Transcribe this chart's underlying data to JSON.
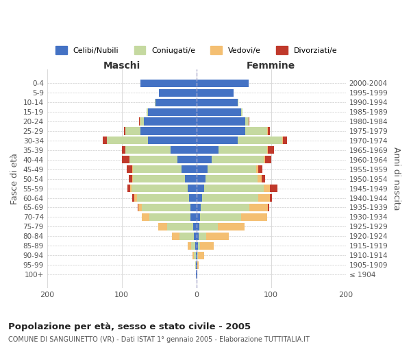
{
  "age_groups": [
    "100+",
    "95-99",
    "90-94",
    "85-89",
    "80-84",
    "75-79",
    "70-74",
    "65-69",
    "60-64",
    "55-59",
    "50-54",
    "45-49",
    "40-44",
    "35-39",
    "30-34",
    "25-29",
    "20-24",
    "15-19",
    "10-14",
    "5-9",
    "0-4"
  ],
  "birth_years": [
    "≤ 1904",
    "1905-1909",
    "1910-1914",
    "1915-1919",
    "1920-1924",
    "1925-1929",
    "1930-1934",
    "1935-1939",
    "1940-1944",
    "1945-1949",
    "1950-1954",
    "1955-1959",
    "1960-1964",
    "1965-1969",
    "1970-1974",
    "1975-1979",
    "1980-1984",
    "1985-1989",
    "1990-1994",
    "1995-1999",
    "2000-2004"
  ],
  "male_celibi": [
    1,
    1,
    1,
    2,
    3,
    4,
    8,
    8,
    10,
    12,
    15,
    20,
    25,
    35,
    65,
    75,
    70,
    65,
    55,
    50,
    75
  ],
  "male_coniugati": [
    0,
    1,
    2,
    5,
    20,
    35,
    55,
    65,
    70,
    75,
    70,
    65,
    65,
    60,
    55,
    20,
    5,
    2,
    1,
    0,
    0
  ],
  "male_vedovi": [
    0,
    0,
    2,
    5,
    10,
    12,
    10,
    5,
    3,
    2,
    1,
    1,
    0,
    0,
    0,
    0,
    1,
    0,
    0,
    0,
    0
  ],
  "male_divorziati": [
    0,
    0,
    0,
    0,
    0,
    0,
    0,
    1,
    3,
    3,
    5,
    7,
    10,
    5,
    5,
    2,
    1,
    0,
    0,
    0,
    0
  ],
  "female_celibi": [
    1,
    1,
    1,
    2,
    3,
    4,
    5,
    6,
    8,
    10,
    12,
    15,
    20,
    30,
    55,
    65,
    65,
    60,
    55,
    50,
    70
  ],
  "female_coniugati": [
    0,
    0,
    1,
    3,
    10,
    25,
    55,
    65,
    75,
    80,
    70,
    65,
    70,
    65,
    60,
    30,
    5,
    2,
    1,
    0,
    0
  ],
  "female_vedovi": [
    0,
    2,
    8,
    18,
    30,
    35,
    35,
    25,
    15,
    8,
    5,
    3,
    2,
    1,
    1,
    1,
    0,
    0,
    0,
    0,
    0
  ],
  "female_divorziati": [
    0,
    0,
    0,
    0,
    0,
    0,
    0,
    1,
    3,
    10,
    5,
    5,
    8,
    8,
    5,
    2,
    1,
    0,
    0,
    0,
    0
  ],
  "colors": {
    "celibi": "#4472c4",
    "coniugati": "#c5d9a0",
    "vedovi": "#f4bf72",
    "divorziati": "#c0392b"
  },
  "title": "Popolazione per età, sesso e stato civile - 2005",
  "subtitle": "COMUNE DI SANGUINETTO (VR) - Dati ISTAT 1° gennaio 2005 - Elaborazione TUTTITALIA.IT",
  "ylabel_left": "Fasce di età",
  "ylabel_right": "Anni di nascita",
  "xlabel_left": "Maschi",
  "xlabel_right": "Femmine",
  "xlim": 200,
  "background_color": "#ffffff",
  "grid_color": "#cccccc"
}
